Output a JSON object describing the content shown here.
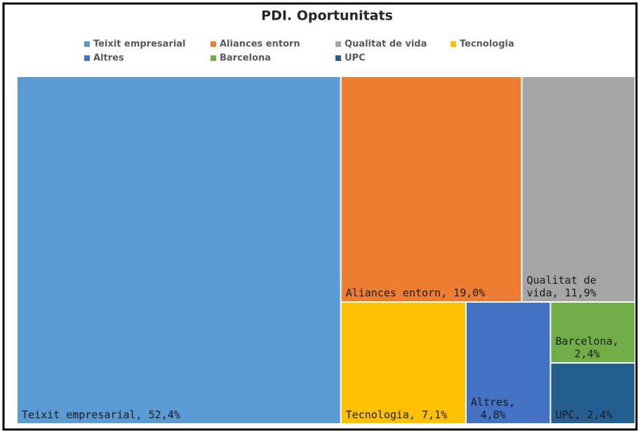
{
  "chart_data": {
    "type": "treemap",
    "title": "PDI. Oportunitats",
    "categories": [
      "Teixit empresarial",
      "Aliances entorn",
      "Qualitat de vida",
      "Tecnologia",
      "Altres",
      "Barcelona",
      "UPC"
    ],
    "values": [
      52.4,
      19.0,
      11.9,
      7.1,
      4.8,
      2.4,
      2.4
    ],
    "value_labels": [
      "Teixit empresarial, 52,4%",
      "Aliances entorn, 19,0%",
      "Qualitat de vida, 11,9%",
      "Tecnologia, 7,1%",
      "Altres, 4,8%",
      "Barcelona, 2,4%",
      "UPC, 2,4%"
    ],
    "colors": [
      "#5b9bd5",
      "#ed7d31",
      "#a5a5a5",
      "#ffc000",
      "#4472c4",
      "#70ad47",
      "#255e91"
    ],
    "legend": "top"
  }
}
